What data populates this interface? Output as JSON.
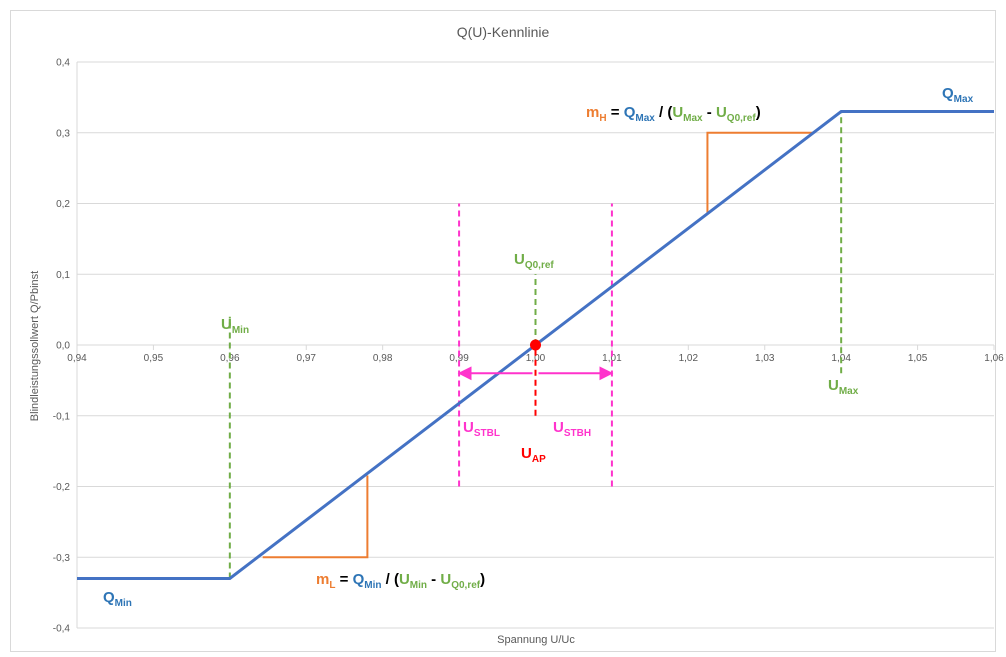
{
  "colors": {
    "curve": "#4472C4",
    "grid": "#d9d9d9",
    "text": "#595959",
    "green": "#70AD47",
    "orange": "#ED7D31",
    "magenta": "#FF33CC",
    "red": "#FF0000",
    "blue": "#2E75B6"
  },
  "chart_data": {
    "type": "line",
    "title": "Q(U)-Kennlinie",
    "xlabel": "Spannung U/Uc",
    "ylabel": "Blindleistungssollwert Q/Pbinst",
    "xlim": [
      0.94,
      1.06
    ],
    "ylim": [
      -0.4,
      0.4
    ],
    "x_ticks": [
      "0,94",
      "0,95",
      "0,96",
      "0,97",
      "0,98",
      "0,99",
      "1,00",
      "1,01",
      "1,02",
      "1,03",
      "1,04",
      "1,05",
      "1,06"
    ],
    "y_ticks": [
      "-0,4",
      "-0,3",
      "-0,2",
      "-0,1",
      "0,0",
      "0,1",
      "0,2",
      "0,3",
      "0,4"
    ],
    "grid": "horizontal",
    "legend": "none",
    "series": [
      {
        "x": [
          0.94,
          0.96,
          1.04,
          1.06
        ],
        "y": [
          -0.33,
          -0.33,
          0.33,
          0.33
        ]
      }
    ],
    "operating_point": {
      "x": 1.0,
      "y": 0.0
    },
    "vertical_markers": [
      {
        "x": 0.96,
        "y_range": [
          -0.33,
          0.04
        ],
        "color": "green"
      },
      {
        "x": 1.04,
        "y_range": [
          -0.04,
          0.33
        ],
        "color": "green"
      },
      {
        "x": 1.0,
        "y_range": [
          0.0,
          0.1
        ],
        "color": "green"
      },
      {
        "x": 1.0,
        "y_range": [
          -0.1,
          0.0
        ],
        "color": "red"
      },
      {
        "x": 0.99,
        "y_range": [
          -0.2,
          0.2
        ],
        "color": "magenta"
      },
      {
        "x": 1.01,
        "y_range": [
          -0.2,
          0.2
        ],
        "color": "magenta"
      }
    ],
    "arrows": [
      {
        "from": 1.0,
        "to": 0.99,
        "y": -0.04
      },
      {
        "from": 1.0,
        "to": 1.01,
        "y": -0.04
      }
    ],
    "slope_triangles": [
      {
        "x1": 0.9643,
        "x2": 0.978,
        "y_low": -0.3,
        "y_high": -0.1845,
        "corner": "bottom-right"
      },
      {
        "x1": 1.0225,
        "x2": 1.0365,
        "y_low": 0.186,
        "y_high": 0.3,
        "corner": "top-left"
      }
    ],
    "annotations": {
      "q_max": {
        "main": "Q",
        "sub": "Max"
      },
      "q_min": {
        "main": "Q",
        "sub": "Min"
      },
      "u_min": {
        "main": "U",
        "sub": "Min"
      },
      "u_max": {
        "main": "U",
        "sub": "Max"
      },
      "u_q0ref": {
        "main": "U",
        "sub": "Q0,ref"
      },
      "u_stbl": {
        "main": "U",
        "sub": "STBL"
      },
      "u_stbh": {
        "main": "U",
        "sub": "STBH"
      },
      "u_ap": {
        "main": "U",
        "sub": "AP"
      },
      "m_h": {
        "m": "m",
        "m_sub": "H",
        "eq": " = ",
        "q": "Q",
        "q_sub": "Max",
        "div": " / (",
        "u1": "U",
        "u1_sub": "Max",
        "minus": " - ",
        "u2": "U",
        "u2_sub": "Q0,ref",
        "close": ")"
      },
      "m_l": {
        "m": "m",
        "m_sub": "L",
        "eq": " = ",
        "q": "Q",
        "q_sub": "Min",
        "div": " / (",
        "u1": "U",
        "u1_sub": "Min",
        "minus": " - ",
        "u2": "U",
        "u2_sub": "Q0,ref",
        "close": ")"
      }
    }
  }
}
